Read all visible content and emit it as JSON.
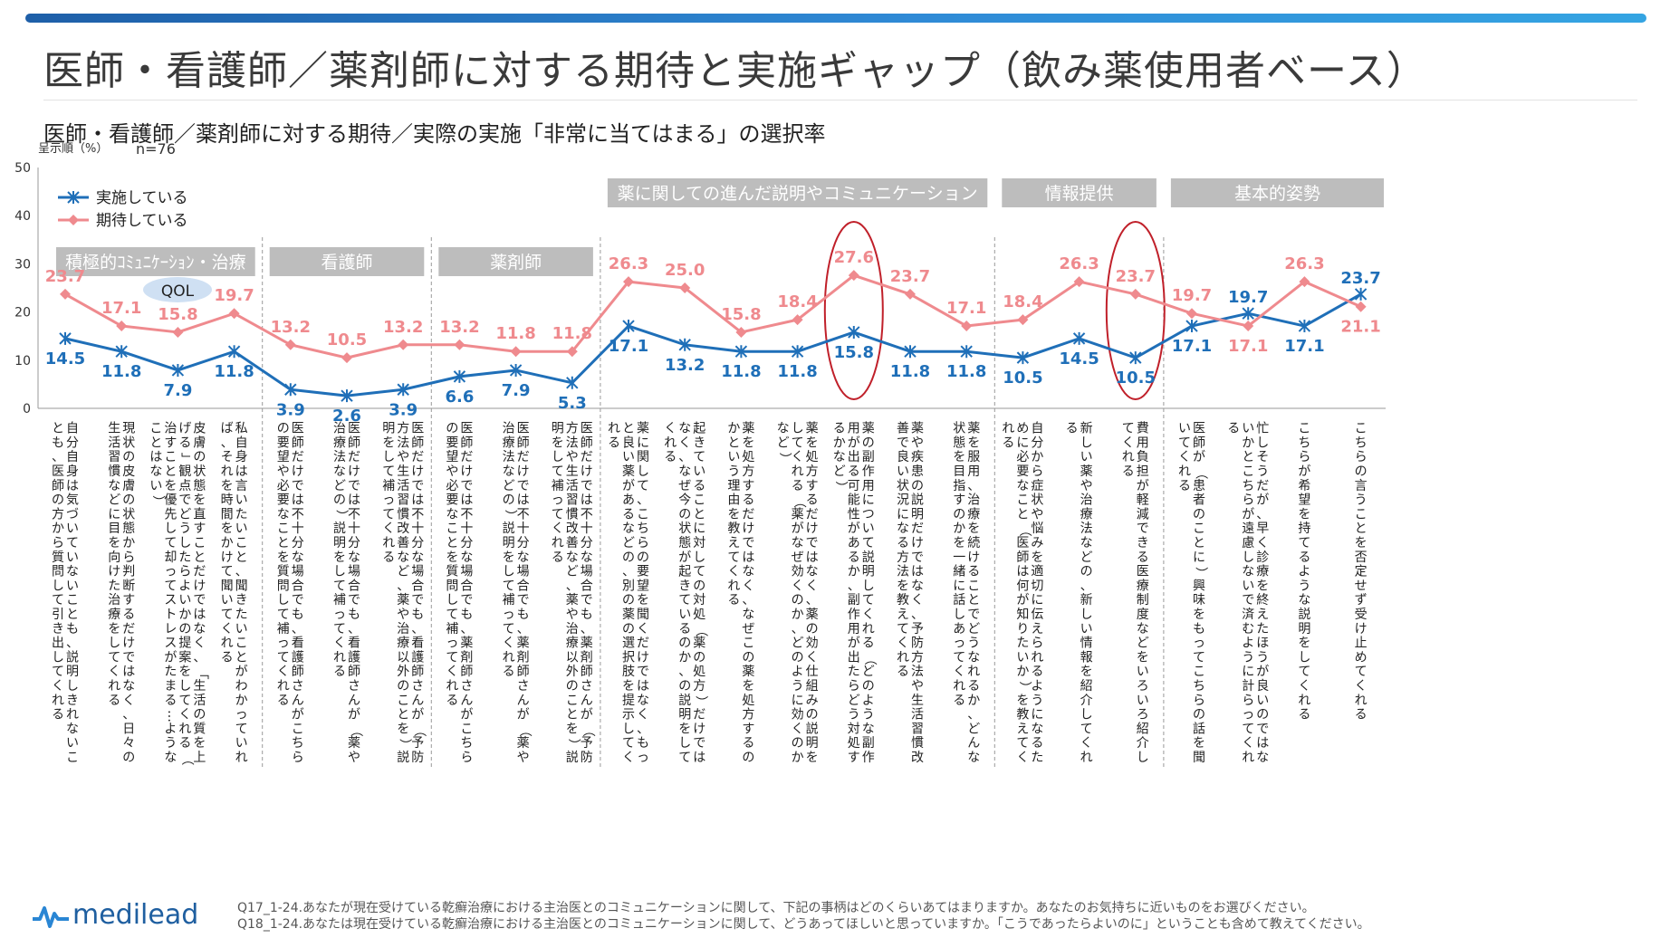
{
  "header": {
    "title": "医師・看護師／薬剤師に対する期待と実施ギャップ（飲み薬使用者ベース）",
    "subtitle": "医師・看護師／薬剤師に対する期待／実際の実施「非常に当てはまる」の選択率"
  },
  "chart_meta": {
    "unit_label": "呈示順（%）",
    "n_label": "n=76",
    "qol_label": "QOL"
  },
  "groups": [
    {
      "label": "積極的ｺﾐｭﾆｹｰｼｮﾝ・治療",
      "start": 0,
      "end": 3
    },
    {
      "label": "看護師",
      "start": 4,
      "end": 6
    },
    {
      "label": "薬剤師",
      "start": 7,
      "end": 9
    },
    {
      "label": "薬に関しての進んだ説明やコミュニケーション",
      "start": 10,
      "end": 16
    },
    {
      "label": "情報提供",
      "start": 17,
      "end": 19
    },
    {
      "label": "基本的姿勢",
      "start": 20,
      "end": 23
    }
  ],
  "chart_data": {
    "type": "line",
    "ylim": [
      0,
      50
    ],
    "yticks": [
      0,
      10,
      20,
      30,
      40,
      50
    ],
    "legend_position": "top-left",
    "categories": [
      "自分自身は気づいていないことも、説明しきれないことも、医師の方から質問して引き出してくれる",
      "現状の皮膚の状態から判断するだけではなく、日々の生活習慣などに目を向けた治療をしてくれる",
      "皮膚の状態を直すことだけではなく、「生活の質を上げる」観点でどうしたらよいかの提案をしてくれる（治すことを優先して却ってストレスがたまる…ようなことはない）",
      "私自身は言いたいこと、聞きたいことがわかっていれば、それを時間をかけて聞いてくれる",
      "医師だけでは不十分な場合でも、看護師さんがこちらの要望や必要なことを質問して補ってくれる",
      "医師だけでは不十分な場合でも、看護師さんが（薬や治療法などの）説明をして補ってくれる",
      "医師だけでは不十分な場合でも、看護師さんが（予防方法や生活習慣改善など、薬や治療以外のことを）説明をして補ってくれる",
      "医師だけでは不十分な場合でも、薬剤師さんがこちらの要望や必要なことを質問して補ってくれる",
      "医師だけでは不十分な場合でも、薬剤師さんが（薬や治療法などの）説明をして補ってくれる",
      "医師だけでは不十分な場合でも、薬剤師さんが（予防方法や生活習慣改善など、薬や治療以外のことを）説明をして補ってくれる",
      "薬に関して、こちらの要望を聞くだけではなく、もっと良い薬があるなどの、別の薬の選択肢を提示してくれる",
      "起きていることに対しての対処（薬の処方）だけではなく、なぜ今の状態が起きているのか、の説明をしてくれる",
      "薬を処方するだけではなく、なぜこの薬を処方するのかという理由を教えてくれる",
      "薬を処方するだけではなく、薬の効く仕組みの説明をしてくれる（薬がなぜ効くのか、どのように効くのかなど）",
      "薬の副作用について説明してくれる（どのような副作用が出る可能性があるか、副作用が出たらどう対処するかなど）",
      "薬や疾患の説明だけではなく、予防方法や生活習慣改善で良い状況になる方法を教えてくれる",
      "薬を服用、治療を続けることでどうなれるか、どんな状態を目指すのかを一緒に話しあってくれる",
      "自分から症状や悩みを適切に伝えられるようになるために必要なこと（医師は何が知りたいか）を教えてくれる",
      "新しい薬や治療法などの、新しい情報を紹介してくれる",
      "費用負担が軽減できる医療制度などをいろいろ紹介してくれる",
      "医師が（患者のことに）興味をもってこちらの話を聞いてくれる",
      "忙しそうだが、早く診療を終えたほうが良いのではないかとこちらが遠慮しないで済むように計らってくれる",
      "こちらが希望を持てるような説明をしてくれる",
      "こちらの言うことを否定せず受け止めてくれる"
    ],
    "series": [
      {
        "name": "実施している",
        "color": "#1f6fb8",
        "marker": "asterisk",
        "values": [
          14.5,
          11.8,
          7.9,
          11.8,
          3.9,
          2.6,
          3.9,
          6.6,
          7.9,
          5.3,
          17.1,
          13.2,
          11.8,
          11.8,
          15.8,
          11.8,
          11.8,
          10.5,
          14.5,
          10.5,
          17.1,
          19.7,
          17.1,
          23.7
        ]
      },
      {
        "name": "期待している",
        "color": "#ef8a8e",
        "marker": "diamond",
        "values": [
          23.7,
          17.1,
          15.8,
          19.7,
          13.2,
          10.5,
          13.2,
          13.2,
          11.8,
          11.8,
          26.3,
          25.0,
          15.8,
          18.4,
          27.6,
          23.7,
          17.1,
          18.4,
          26.3,
          23.7,
          19.7,
          17.1,
          26.3,
          21.1
        ]
      }
    ],
    "highlighted_categories": [
      14,
      19
    ]
  },
  "footnotes": [
    "Q17_1-24.あなたが現在受けている乾癬治療における主治医とのコミュニケーションに関して、下記の事柄はどのくらいあてはまりますか。あなたのお気持ちに近いものをお選びください。",
    "Q18_1-24.あなたは現在受けている乾癬治療における主治医とのコミュニケーションに関して、どうあってほしいと思っていますか。「こうであったらよいのに」ということも含めて教えてください。"
  ],
  "logo": {
    "text": "medilead"
  }
}
